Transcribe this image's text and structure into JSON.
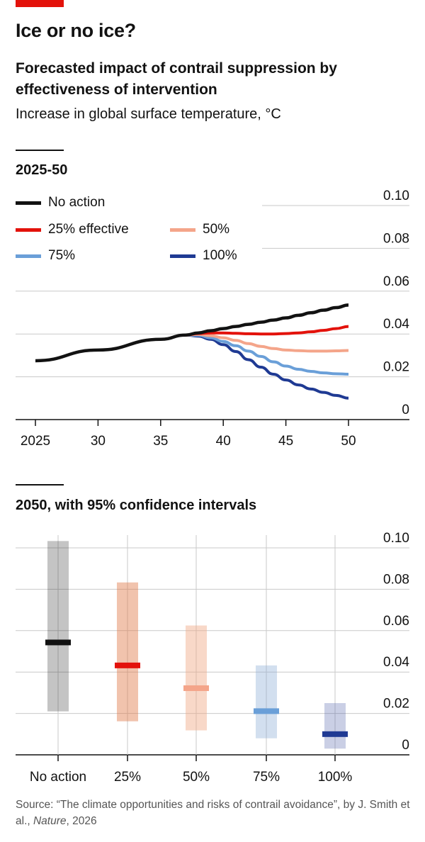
{
  "header": {
    "title": "Ice or no ice?",
    "subtitle": "Forecasted impact of contrail suppression by effectiveness of intervention",
    "unit": "Increase in global surface temperature, °C"
  },
  "colors": {
    "accent": "#e3120b",
    "no_action": "#121212",
    "p25": "#e3120b",
    "p50": "#f4a58a",
    "p75": "#6a9fd8",
    "p100": "#1f3a93"
  },
  "chart_data": [
    {
      "type": "line",
      "title": "2025-50",
      "x": [
        2025,
        2030,
        2035,
        2037,
        2038,
        2039,
        2040,
        2041,
        2042,
        2043,
        2044,
        2045,
        2046,
        2047,
        2048,
        2049,
        2050
      ],
      "xticks": [
        2025,
        2030,
        2035,
        2040,
        2045,
        2050
      ],
      "xtick_labels": [
        "2025",
        "30",
        "35",
        "40",
        "45",
        "50"
      ],
      "ylim": [
        0,
        0.1
      ],
      "yticks": [
        0,
        0.02,
        0.04,
        0.06,
        0.08,
        0.1
      ],
      "ytick_labels": [
        "0",
        "0.02",
        "0.04",
        "0.06",
        "0.08",
        "0.10"
      ],
      "legend_position": "top-left",
      "series": [
        {
          "name": "No action",
          "key": "no_action",
          "values": [
            0.0275,
            0.0325,
            0.0375,
            0.0395,
            0.0405,
            0.0415,
            0.0425,
            0.0435,
            0.0445,
            0.0455,
            0.0465,
            0.0475,
            0.0487,
            0.0499,
            0.0511,
            0.0523,
            0.0535
          ]
        },
        {
          "name": "25% effective",
          "key": "p25",
          "values": [
            null,
            null,
            null,
            0.0395,
            0.0402,
            0.0405,
            0.0405,
            0.0403,
            0.0401,
            0.04,
            0.04,
            0.0402,
            0.0405,
            0.041,
            0.0417,
            0.0425,
            0.0435
          ]
        },
        {
          "name": "50%",
          "key": "p50",
          "values": [
            null,
            null,
            null,
            0.0395,
            0.0398,
            0.0392,
            0.0382,
            0.037,
            0.0355,
            0.0342,
            0.0332,
            0.0325,
            0.0322,
            0.032,
            0.032,
            0.0321,
            0.0323
          ]
        },
        {
          "name": "75%",
          "key": "p75",
          "values": [
            null,
            null,
            null,
            0.0395,
            0.0394,
            0.0382,
            0.0365,
            0.0345,
            0.032,
            0.0295,
            0.027,
            0.025,
            0.0235,
            0.0225,
            0.0218,
            0.0214,
            0.0212
          ]
        },
        {
          "name": "100%",
          "key": "p100",
          "values": [
            null,
            null,
            null,
            0.0395,
            0.039,
            0.0375,
            0.035,
            0.0318,
            0.028,
            0.0245,
            0.0212,
            0.0185,
            0.0162,
            0.0143,
            0.0127,
            0.0113,
            0.01
          ]
        }
      ]
    },
    {
      "type": "bar",
      "title": "2050, with 95% confidence intervals",
      "categories": [
        "No action",
        "25%",
        "50%",
        "75%",
        "100%"
      ],
      "keys": [
        "no_action",
        "p25",
        "p50",
        "p75",
        "p100"
      ],
      "values": [
        0.0543,
        0.0432,
        0.0322,
        0.0211,
        0.01
      ],
      "ci_low": [
        0.021,
        0.0162,
        0.0118,
        0.008,
        0.003
      ],
      "ci_high": [
        0.1033,
        0.0833,
        0.0625,
        0.0432,
        0.025
      ],
      "ylim": [
        0,
        0.1
      ],
      "yticks": [
        0,
        0.02,
        0.04,
        0.06,
        0.08,
        0.1
      ],
      "ytick_labels": [
        "0",
        "0.02",
        "0.04",
        "0.06",
        "0.08",
        "0.10"
      ]
    }
  ],
  "source": {
    "prefix": "Source: “The climate opportunities and risks of contrail avoidance”, by J. Smith et al., ",
    "journal": "Nature",
    "suffix": ", 2026"
  }
}
